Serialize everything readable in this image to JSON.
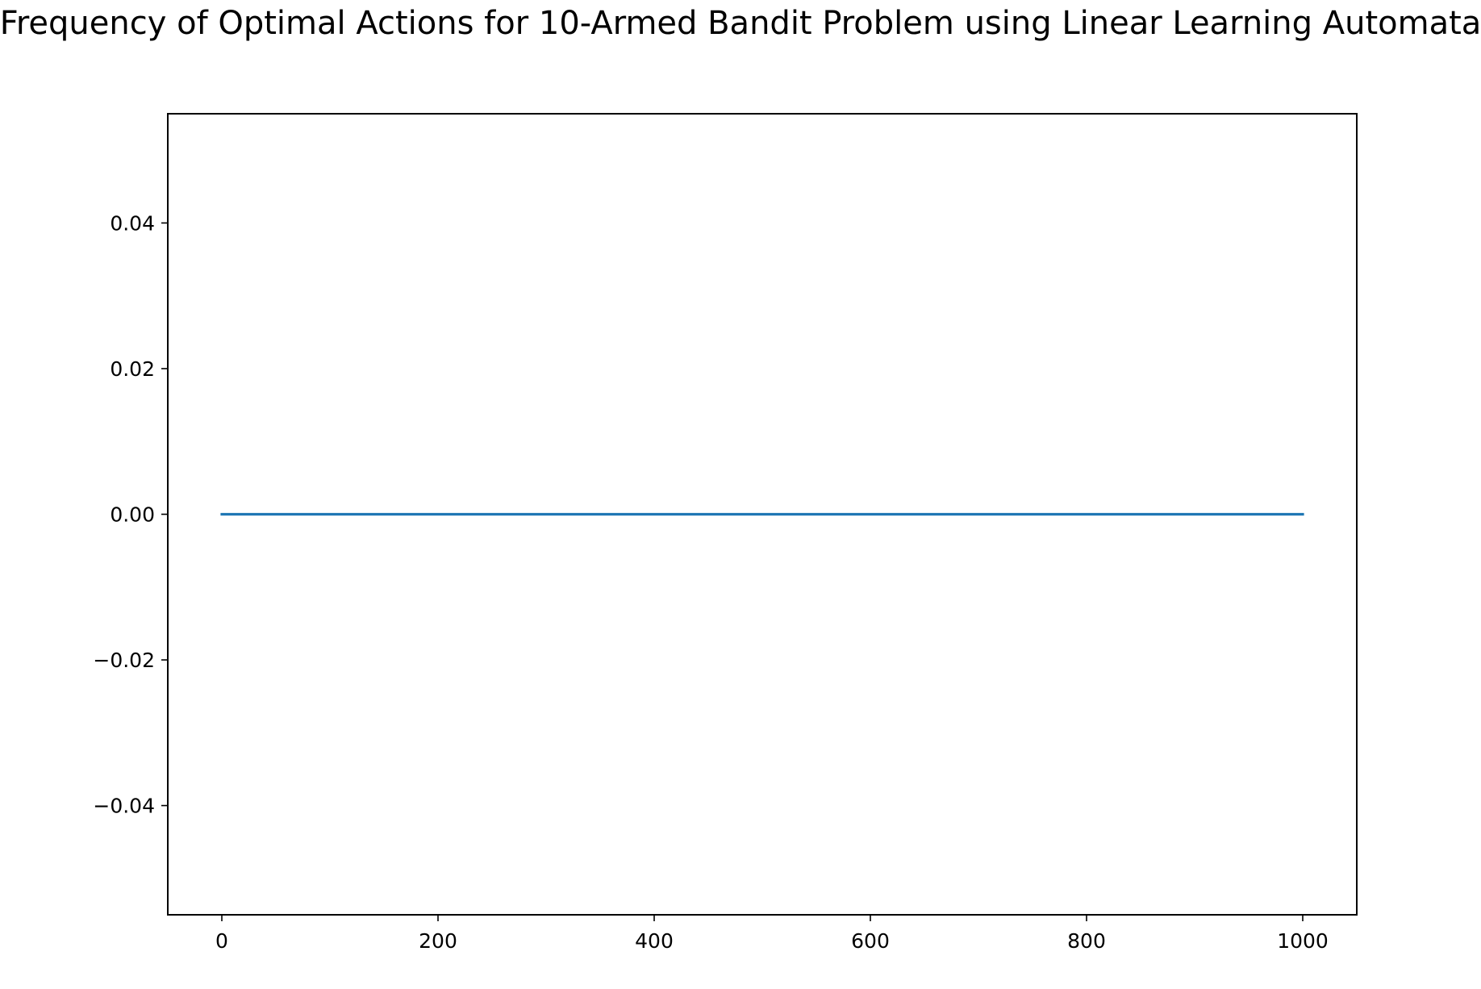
{
  "chart_data": {
    "type": "line",
    "title": "Frequency of Optimal Actions for 10-Armed Bandit Problem using Linear Learning Automata",
    "xlabel": "",
    "ylabel": "",
    "xlim": [
      -50,
      1050
    ],
    "ylim": [
      -0.055,
      0.055
    ],
    "x_ticks": [
      0,
      200,
      400,
      600,
      800,
      1000
    ],
    "x_tick_labels": [
      "0",
      "200",
      "400",
      "600",
      "800",
      "1000"
    ],
    "y_ticks": [
      0.04,
      0.02,
      0.0,
      -0.02,
      -0.04
    ],
    "y_tick_labels": [
      "0.04",
      "0.02",
      "0.00",
      "−0.02",
      "−0.04"
    ],
    "grid": false,
    "legend": "none",
    "series": [
      {
        "color": "#1f77b4",
        "x": [
          0,
          1000
        ],
        "y": [
          0.0,
          0.0
        ]
      }
    ]
  }
}
